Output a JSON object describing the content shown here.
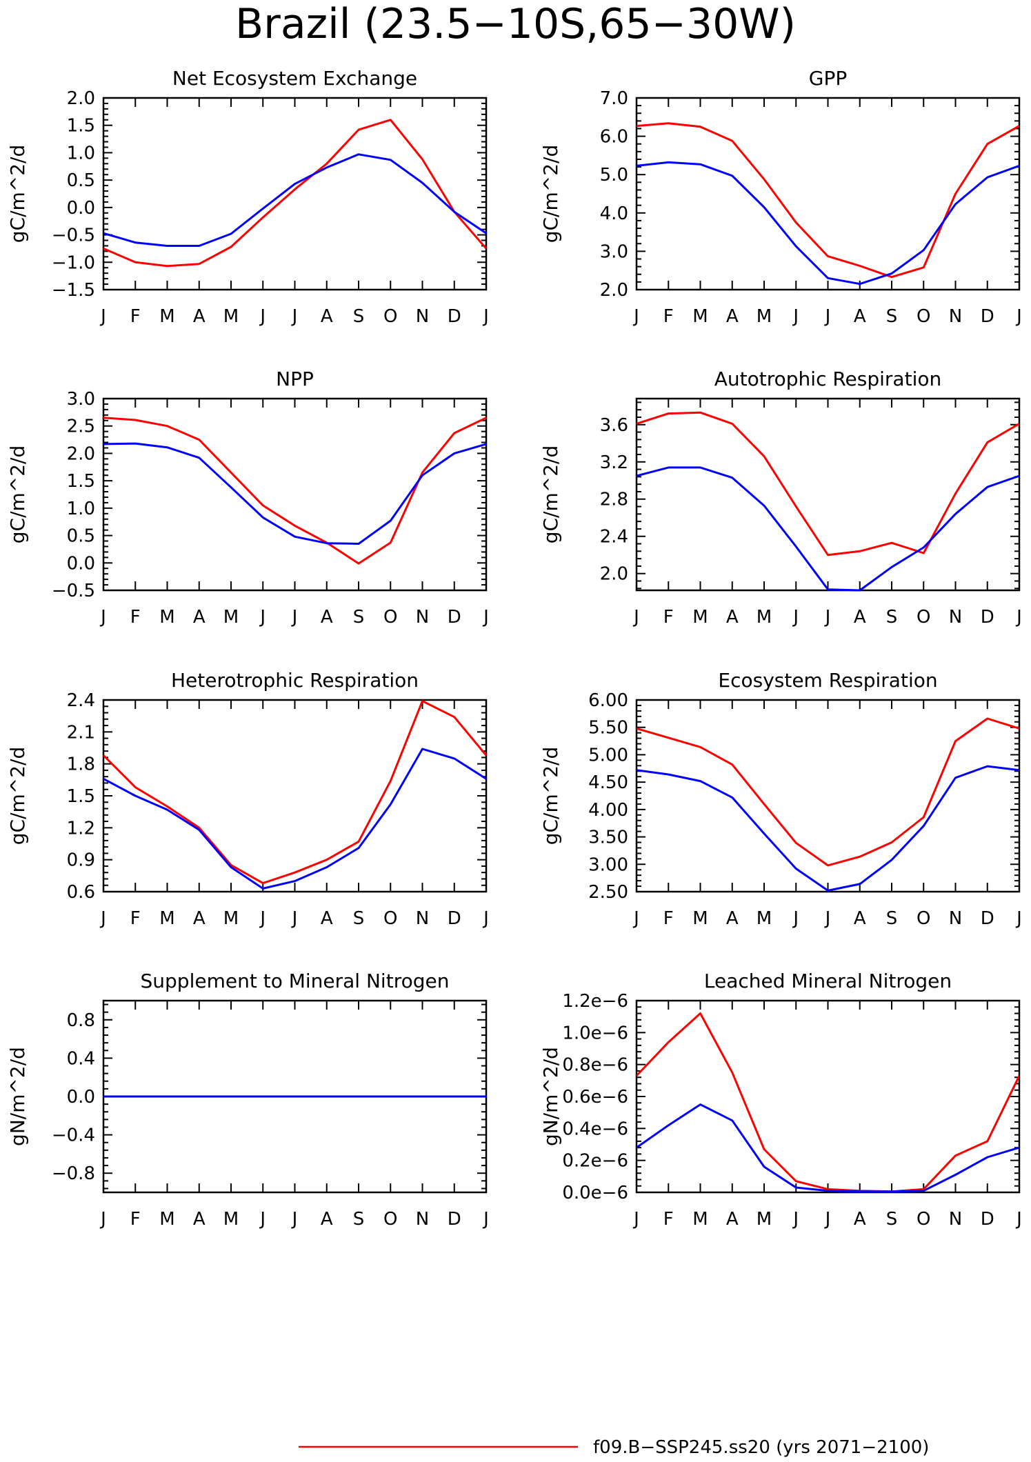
{
  "page": {
    "title": "Brazil (23.5−10S,65−30W)"
  },
  "legend": {
    "items": [
      {
        "label": "f09.B−SSP245.ss20 (yrs 2071−2100)",
        "color": "#ff0000"
      }
    ]
  },
  "colors": {
    "series_a": "#ff0000",
    "series_b": "#0000ff"
  },
  "chart_data": [
    {
      "type": "line",
      "title": "Net Ecosystem Exchange",
      "ylabel": "gC/m^2/d",
      "x": [
        "J",
        "F",
        "M",
        "A",
        "M",
        "J",
        "J",
        "A",
        "S",
        "O",
        "N",
        "D",
        "J"
      ],
      "ylim": [
        -1.5,
        2.0
      ],
      "yticks": [
        -1.5,
        -1.0,
        -0.5,
        0.0,
        0.5,
        1.0,
        1.5,
        2.0
      ],
      "ytick_labels": [
        "−1.5",
        "−1.0",
        "−0.5",
        "0.0",
        "0.5",
        "1.0",
        "1.5",
        "2.0"
      ],
      "series": [
        {
          "color": "#ff0000",
          "values": [
            -0.75,
            -1.0,
            -1.07,
            -1.03,
            -0.72,
            -0.18,
            0.33,
            0.8,
            1.42,
            1.6,
            0.88,
            -0.08,
            -0.75
          ]
        },
        {
          "color": "#0000ff",
          "values": [
            -0.47,
            -0.64,
            -0.7,
            -0.7,
            -0.48,
            -0.02,
            0.43,
            0.73,
            0.97,
            0.87,
            0.45,
            -0.08,
            -0.47
          ]
        }
      ]
    },
    {
      "type": "line",
      "title": "GPP",
      "ylabel": "gC/m^2/d",
      "x": [
        "J",
        "F",
        "M",
        "A",
        "M",
        "J",
        "J",
        "A",
        "S",
        "O",
        "N",
        "D",
        "J"
      ],
      "ylim": [
        2.0,
        7.0
      ],
      "yticks": [
        2.0,
        3.0,
        4.0,
        5.0,
        6.0,
        7.0
      ],
      "ytick_labels": [
        "2.0",
        "3.0",
        "4.0",
        "5.0",
        "6.0",
        "7.0"
      ],
      "series": [
        {
          "color": "#ff0000",
          "values": [
            6.27,
            6.34,
            6.25,
            5.88,
            4.88,
            3.75,
            2.87,
            2.62,
            2.33,
            2.58,
            4.5,
            5.8,
            6.27
          ]
        },
        {
          "color": "#0000ff",
          "values": [
            5.23,
            5.32,
            5.27,
            4.97,
            4.15,
            3.13,
            2.3,
            2.15,
            2.42,
            3.03,
            4.23,
            4.93,
            5.23
          ]
        }
      ]
    },
    {
      "type": "line",
      "title": "NPP",
      "ylabel": "gC/m^2/d",
      "x": [
        "J",
        "F",
        "M",
        "A",
        "M",
        "J",
        "J",
        "A",
        "S",
        "O",
        "N",
        "D",
        "J"
      ],
      "ylim": [
        -0.5,
        3.0
      ],
      "yticks": [
        -0.5,
        0.0,
        0.5,
        1.0,
        1.5,
        2.0,
        2.5,
        3.0
      ],
      "ytick_labels": [
        "−0.5",
        "0.0",
        "0.5",
        "1.0",
        "1.5",
        "2.0",
        "2.5",
        "3.0"
      ],
      "series": [
        {
          "color": "#ff0000",
          "values": [
            2.65,
            2.61,
            2.5,
            2.25,
            1.65,
            1.05,
            0.68,
            0.37,
            -0.01,
            0.37,
            1.65,
            2.37,
            2.65
          ]
        },
        {
          "color": "#0000ff",
          "values": [
            2.17,
            2.18,
            2.11,
            1.92,
            1.38,
            0.83,
            0.48,
            0.36,
            0.35,
            0.77,
            1.6,
            2.0,
            2.17
          ]
        }
      ]
    },
    {
      "type": "line",
      "title": "Autotrophic Respiration",
      "ylabel": "gC/m^2/d",
      "x": [
        "J",
        "F",
        "M",
        "A",
        "M",
        "J",
        "J",
        "A",
        "S",
        "O",
        "N",
        "D",
        "J"
      ],
      "ylim": [
        1.82,
        3.88
      ],
      "yticks": [
        2.0,
        2.4,
        2.8,
        3.2,
        3.6
      ],
      "ytick_labels": [
        "2.0",
        "2.4",
        "2.8",
        "3.2",
        "3.6"
      ],
      "series": [
        {
          "color": "#ff0000",
          "values": [
            3.61,
            3.72,
            3.73,
            3.61,
            3.26,
            2.72,
            2.2,
            2.24,
            2.33,
            2.22,
            2.86,
            3.41,
            3.61
          ]
        },
        {
          "color": "#0000ff",
          "values": [
            3.05,
            3.14,
            3.14,
            3.03,
            2.73,
            2.29,
            1.83,
            1.82,
            2.07,
            2.28,
            2.64,
            2.93,
            3.05
          ]
        }
      ]
    },
    {
      "type": "line",
      "title": "Heterotrophic Respiration",
      "ylabel": "gC/m^2/d",
      "x": [
        "J",
        "F",
        "M",
        "A",
        "M",
        "J",
        "J",
        "A",
        "S",
        "O",
        "N",
        "D",
        "J"
      ],
      "ylim": [
        0.6,
        2.4
      ],
      "yticks": [
        0.6,
        0.9,
        1.2,
        1.5,
        1.8,
        2.1,
        2.4
      ],
      "ytick_labels": [
        "0.6",
        "0.9",
        "1.2",
        "1.5",
        "1.8",
        "2.1",
        "2.4"
      ],
      "series": [
        {
          "color": "#ff0000",
          "values": [
            1.88,
            1.58,
            1.4,
            1.2,
            0.85,
            0.68,
            0.78,
            0.9,
            1.07,
            1.64,
            2.39,
            2.24,
            1.88
          ]
        },
        {
          "color": "#0000ff",
          "values": [
            1.66,
            1.5,
            1.37,
            1.18,
            0.83,
            0.63,
            0.7,
            0.83,
            1.01,
            1.42,
            1.94,
            1.85,
            1.66
          ]
        }
      ]
    },
    {
      "type": "line",
      "title": "Ecosystem Respiration",
      "ylabel": "gC/m^2/d",
      "x": [
        "J",
        "F",
        "M",
        "A",
        "M",
        "J",
        "J",
        "A",
        "S",
        "O",
        "N",
        "D",
        "J"
      ],
      "ylim": [
        2.5,
        6.0
      ],
      "yticks": [
        2.5,
        3.0,
        3.5,
        4.0,
        4.5,
        5.0,
        5.5,
        6.0
      ],
      "ytick_labels": [
        "2.50",
        "3.00",
        "3.50",
        "4.00",
        "4.50",
        "5.00",
        "5.50",
        "6.00"
      ],
      "series": [
        {
          "color": "#ff0000",
          "values": [
            5.48,
            5.31,
            5.14,
            4.82,
            4.1,
            3.39,
            2.98,
            3.14,
            3.4,
            3.86,
            5.25,
            5.66,
            5.48
          ]
        },
        {
          "color": "#0000ff",
          "values": [
            4.72,
            4.64,
            4.52,
            4.22,
            3.56,
            2.92,
            2.52,
            2.64,
            3.08,
            3.7,
            4.58,
            4.79,
            4.72
          ]
        }
      ]
    },
    {
      "type": "line",
      "title": "Supplement to Mineral Nitrogen",
      "ylabel": "gN/m^2/d",
      "x": [
        "J",
        "F",
        "M",
        "A",
        "M",
        "J",
        "J",
        "A",
        "S",
        "O",
        "N",
        "D",
        "J"
      ],
      "ylim": [
        -1.0,
        1.0
      ],
      "yticks": [
        -0.8,
        -0.4,
        0.0,
        0.4,
        0.8
      ],
      "ytick_labels": [
        "−0.8",
        "−0.4",
        "0.0",
        "0.4",
        "0.8"
      ],
      "series": [
        {
          "color": "#ff0000",
          "values": [
            0,
            0,
            0,
            0,
            0,
            0,
            0,
            0,
            0,
            0,
            0,
            0,
            0
          ]
        },
        {
          "color": "#0000ff",
          "values": [
            0,
            0,
            0,
            0,
            0,
            0,
            0,
            0,
            0,
            0,
            0,
            0,
            0
          ]
        }
      ]
    },
    {
      "type": "line",
      "title": "Leached Mineral Nitrogen",
      "ylabel": "gN/m^2/d",
      "x": [
        "J",
        "F",
        "M",
        "A",
        "M",
        "J",
        "J",
        "A",
        "S",
        "O",
        "N",
        "D",
        "J"
      ],
      "ylim": [
        0.0,
        1.2
      ],
      "yticks": [
        0.0,
        0.2,
        0.4,
        0.6,
        0.8,
        1.0,
        1.2
      ],
      "ytick_labels": [
        "0.0e−6",
        "0.2e−6",
        "0.4e−6",
        "0.6e−6",
        "0.8e−6",
        "1.0e−6",
        "1.2e−6"
      ],
      "series": [
        {
          "color": "#ff0000",
          "values": [
            0.73,
            0.94,
            1.12,
            0.75,
            0.27,
            0.07,
            0.02,
            0.01,
            0.005,
            0.02,
            0.23,
            0.32,
            0.73
          ]
        },
        {
          "color": "#0000ff",
          "values": [
            0.28,
            0.42,
            0.55,
            0.45,
            0.16,
            0.03,
            0.01,
            0.005,
            0.005,
            0.01,
            0.11,
            0.22,
            0.28
          ]
        }
      ]
    }
  ]
}
